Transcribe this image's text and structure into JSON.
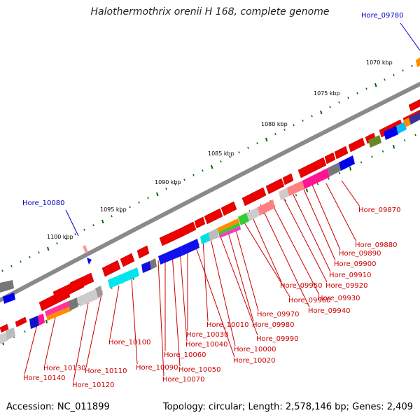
{
  "header": {
    "title": "Halothermothrix orenii H 168, complete genome"
  },
  "footer": {
    "accession": "Accession: NC_011899",
    "summary": "Topology: circular; Length: 2,578,146 bp; Genes: 2,409"
  },
  "colors": {
    "gene_red": "#ee0000",
    "backbone": "#888888",
    "label_red": "#cc0000",
    "label_blue": "#0000cc",
    "tick_green": "#006600"
  },
  "scale_labels": [
    "1070 kbp",
    "1075 kbp",
    "1080 kbp",
    "1085 kbp",
    "1090 kbp",
    "1095 kbp",
    "1100 kbp"
  ],
  "blue_labels": [
    "Hore_09780",
    "Hore_10080"
  ],
  "gene_labels": [
    "Hore_09870",
    "Hore_09880",
    "Hore_09890",
    "Hore_09900",
    "Hore_09910",
    "Hore_09920",
    "Hore_09930",
    "Hore_09940",
    "Hore_09950",
    "Hore_09960",
    "Hore_09970",
    "Hore_09980",
    "Hore_09990",
    "Hore_10000",
    "Hore_10010",
    "Hore_10020",
    "Hore_10030",
    "Hore_10040",
    "Hore_10050",
    "Hore_10060",
    "Hore_10070",
    "Hore_10090",
    "Hore_10100",
    "Hore_10110",
    "Hore_10120",
    "Hore_10130",
    "Hore_10140"
  ]
}
